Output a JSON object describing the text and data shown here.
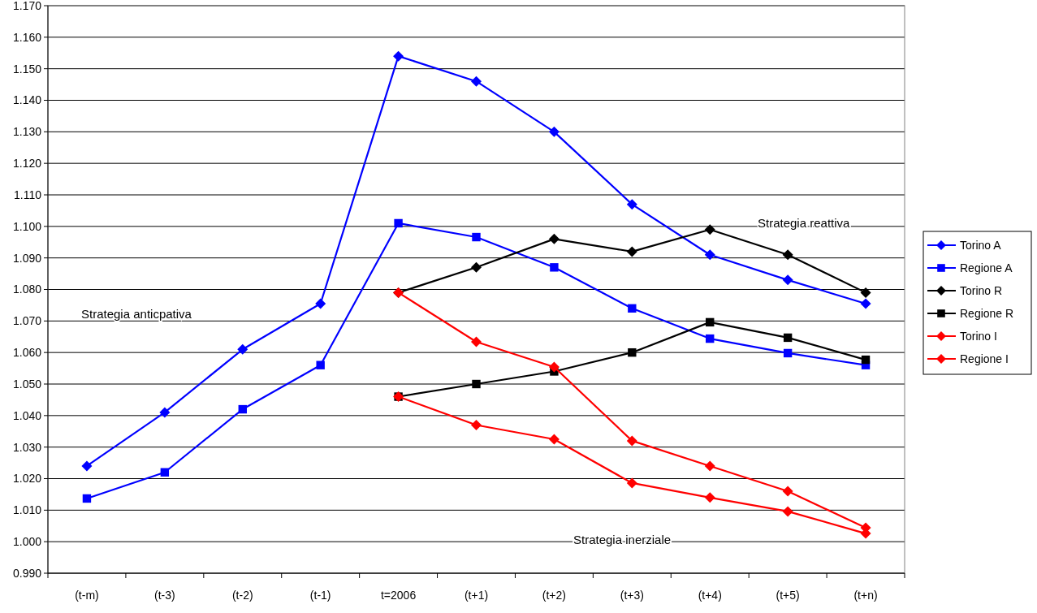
{
  "chart_data": {
    "type": "line",
    "categories": [
      "(t-m)",
      "(t-3)",
      "(t-2)",
      "(t-1)",
      "t=2006",
      "(t+1)",
      "(t+2)",
      "(t+3)",
      "(t+4)",
      "(t+5)",
      "(t+n)"
    ],
    "ylim": [
      0.99,
      1.17
    ],
    "yticks": [
      {
        "value": 0.99,
        "label": "0.990"
      },
      {
        "value": 1.0,
        "label": "1.000"
      },
      {
        "value": 1.01,
        "label": "1.010"
      },
      {
        "value": 1.02,
        "label": "1.020"
      },
      {
        "value": 1.03,
        "label": "1.030"
      },
      {
        "value": 1.04,
        "label": "1.040"
      },
      {
        "value": 1.05,
        "label": "1.050"
      },
      {
        "value": 1.06,
        "label": "1.060"
      },
      {
        "value": 1.07,
        "label": "1.070"
      },
      {
        "value": 1.08,
        "label": "1.080"
      },
      {
        "value": 1.09,
        "label": "1.090"
      },
      {
        "value": 1.1,
        "label": "1.100"
      },
      {
        "value": 1.11,
        "label": "1.110"
      },
      {
        "value": 1.12,
        "label": "1.120"
      },
      {
        "value": 1.13,
        "label": "1.130"
      },
      {
        "value": 1.14,
        "label": "1.140"
      },
      {
        "value": 1.15,
        "label": "1.150"
      },
      {
        "value": 1.16,
        "label": "1.160"
      },
      {
        "value": 1.17,
        "label": "1.170"
      }
    ],
    "grid": "y",
    "legend": "right",
    "series": [
      {
        "name": "Torino A",
        "color": "#0000ff",
        "marker": "diamond",
        "values": [
          1.024,
          1.041,
          1.061,
          1.0755,
          1.154,
          1.146,
          1.13,
          1.107,
          1.091,
          1.083,
          1.0755
        ]
      },
      {
        "name": "Regione A",
        "color": "#0000ff",
        "marker": "square",
        "values": [
          1.0137,
          1.022,
          1.042,
          1.056,
          1.101,
          1.0966,
          1.087,
          1.074,
          1.0644,
          1.0598,
          1.056
        ]
      },
      {
        "name": "Torino R",
        "color": "#000000",
        "marker": "diamond",
        "values": [
          null,
          null,
          null,
          null,
          1.079,
          1.087,
          1.096,
          1.092,
          1.099,
          1.091,
          1.079
        ]
      },
      {
        "name": "Regione R",
        "color": "#000000",
        "marker": "square",
        "values": [
          null,
          null,
          null,
          null,
          1.046,
          1.05,
          1.054,
          1.06,
          1.0696,
          1.0647,
          1.0577
        ]
      },
      {
        "name": "Torino I",
        "color": "#ff0000",
        "marker": "diamond",
        "values": [
          null,
          null,
          null,
          null,
          1.079,
          1.0634,
          1.0554,
          1.032,
          1.024,
          1.016,
          1.0044
        ]
      },
      {
        "name": "Regione I",
        "color": "#ff0000",
        "marker": "diamond",
        "values": [
          null,
          null,
          null,
          null,
          1.046,
          1.037,
          1.0325,
          1.0186,
          1.014,
          1.0096,
          1.0026
        ]
      }
    ],
    "annotations": [
      "Strategia anticpativa",
      "Strategia reattiva",
      "Strategia inerziale"
    ]
  }
}
